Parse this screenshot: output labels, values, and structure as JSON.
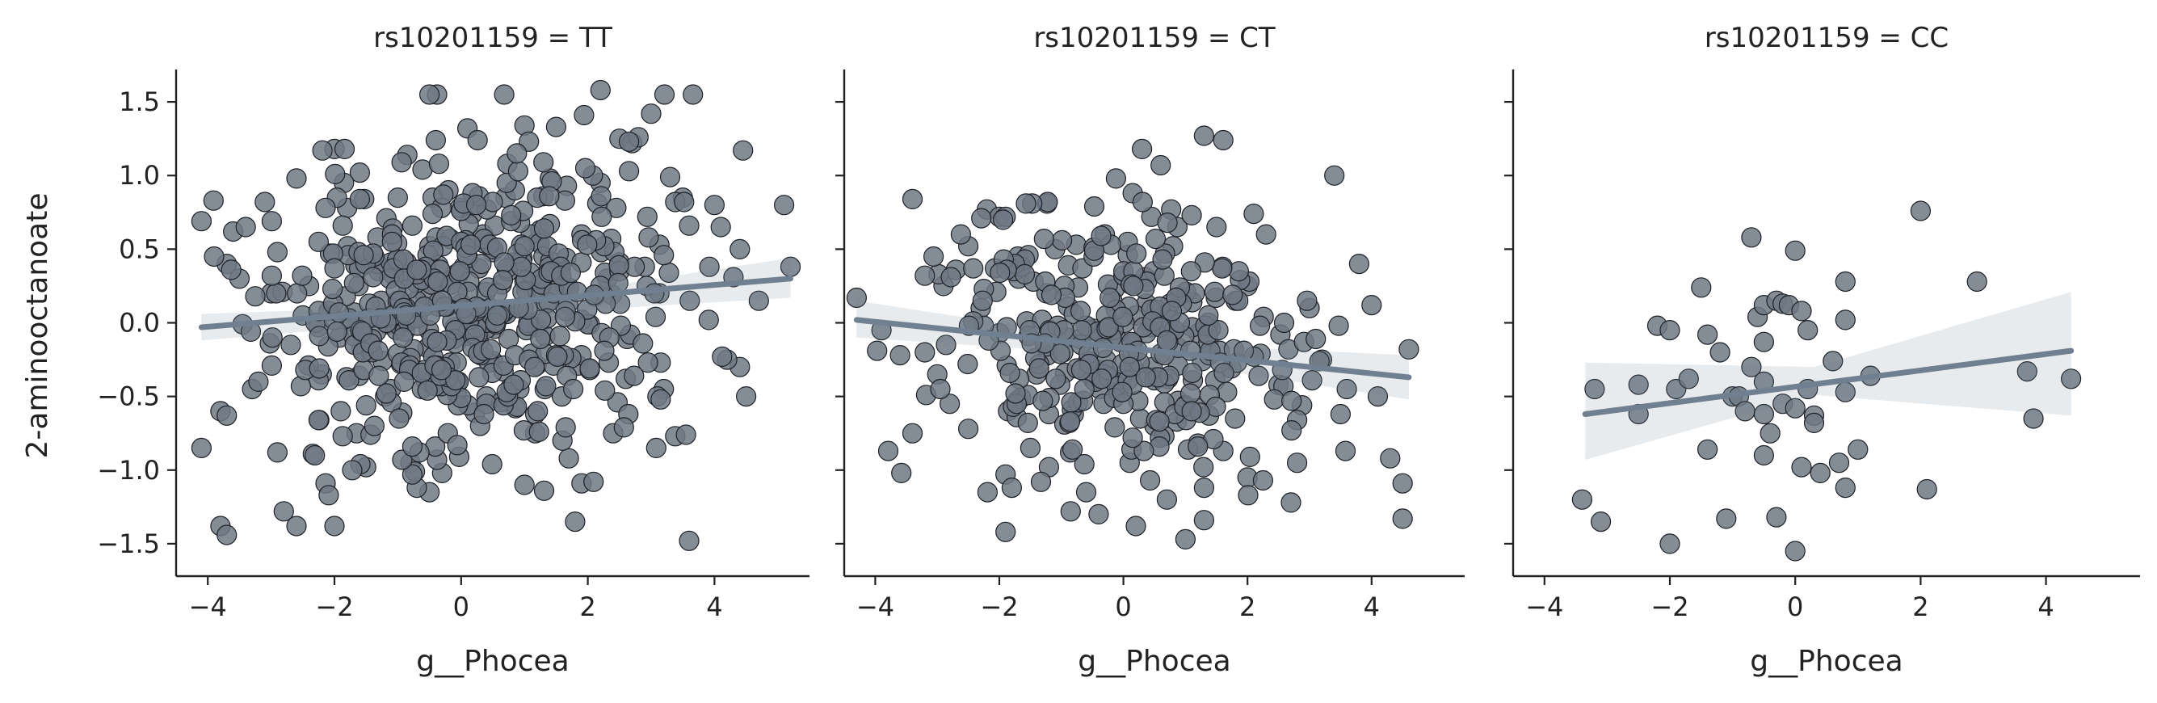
{
  "chart_data": {
    "type": "scatter",
    "ylabel": "2-aminooctanoate",
    "xlim": [
      -4.5,
      5.5
    ],
    "ylim": [
      -1.72,
      1.72
    ],
    "xticks": [
      -4,
      -2,
      0,
      2,
      4
    ],
    "xtick_labels": [
      "−4",
      "−2",
      "0",
      "2",
      "4"
    ],
    "yticks": [
      -1.5,
      -1.0,
      -0.5,
      0.0,
      0.5,
      1.0,
      1.5
    ],
    "ytick_labels": [
      "−1.5",
      "−1.0",
      "−0.5",
      "0.0",
      "0.5",
      "1.0",
      "1.5"
    ],
    "colors": {
      "points": "#6e7884",
      "point_edge": "#1e2228",
      "fit": "#708090"
    },
    "panels": [
      {
        "title": "rs10201159 = TT",
        "xlabel": "g__Phocea",
        "n_points": 520,
        "seed": 11,
        "x_mean": 0.1,
        "x_sd": 1.5,
        "y_sd": 0.5,
        "x_range": [
          -4.1,
          5.2
        ],
        "fit": {
          "x": [
            -4.1,
            5.2
          ],
          "y": [
            -0.03,
            0.3
          ]
        },
        "ci": {
          "x": [
            -4.1,
            0.5,
            5.2
          ],
          "lower": [
            -0.12,
            0.05,
            0.17
          ],
          "upper": [
            0.06,
            0.13,
            0.44
          ]
        },
        "points": [
          [
            -4.1,
            -0.85
          ],
          [
            -3.8,
            -1.38
          ],
          [
            -3.7,
            -1.44
          ],
          [
            -3.8,
            -0.6
          ],
          [
            -3.7,
            -0.63
          ],
          [
            -3.6,
            0.62
          ],
          [
            -3.7,
            0.4
          ],
          [
            -3.4,
            0.65
          ],
          [
            -3.3,
            -0.45
          ],
          [
            -3.1,
            0.82
          ],
          [
            -2.8,
            -1.28
          ],
          [
            -2.6,
            -1.38
          ],
          [
            -2.9,
            -0.88
          ],
          [
            -2.6,
            0.98
          ],
          [
            -2.0,
            1.18
          ],
          [
            -1.6,
            1.02
          ],
          [
            2.2,
            1.58
          ],
          [
            3.0,
            1.42
          ],
          [
            2.5,
            1.25
          ],
          [
            2.7,
            1.22
          ],
          [
            2.8,
            1.26
          ],
          [
            0.1,
            1.32
          ],
          [
            1.0,
            1.34
          ],
          [
            1.5,
            1.33
          ],
          [
            3.6,
            -1.48
          ],
          [
            1.8,
            -1.35
          ],
          [
            1.7,
            -0.92
          ],
          [
            1.0,
            -1.1
          ],
          [
            -0.5,
            -1.15
          ],
          [
            -0.7,
            -1.12
          ],
          [
            -0.3,
            -1.02
          ],
          [
            -1.5,
            -0.98
          ],
          [
            -0.8,
            -0.95
          ],
          [
            3.5,
            0.85
          ],
          [
            4.0,
            0.8
          ],
          [
            4.1,
            0.65
          ],
          [
            4.4,
            0.5
          ],
          [
            4.7,
            0.15
          ],
          [
            5.1,
            0.8
          ],
          [
            5.2,
            0.38
          ],
          [
            4.4,
            -0.3
          ],
          [
            4.2,
            -0.25
          ],
          [
            4.5,
            -0.5
          ],
          [
            3.2,
            -0.45
          ],
          [
            3.1,
            -0.5
          ],
          [
            2.6,
            -0.38
          ],
          [
            2.2,
            0.95
          ],
          [
            2.9,
            0.38
          ],
          [
            1.9,
            0.6
          ],
          [
            1.2,
            0.55
          ],
          [
            0.5,
            0.48
          ],
          [
            -0.5,
            0.52
          ],
          [
            -1.3,
            0.35
          ],
          [
            -2.4,
            0.25
          ],
          [
            -1.9,
            -0.6
          ],
          [
            -1.2,
            -0.5
          ],
          [
            0.4,
            -0.5
          ],
          [
            1.6,
            -0.8
          ],
          [
            2.4,
            -0.75
          ],
          [
            -2.2,
            -0.35
          ],
          [
            -3.2,
            -0.4
          ],
          [
            -3.9,
            0.45
          ],
          [
            -3.0,
            0.2
          ],
          [
            -2.5,
            0.05
          ],
          [
            0.2,
            0.8
          ],
          [
            -0.2,
            0.9
          ],
          [
            0.7,
            0.85
          ],
          [
            1.4,
            0.98
          ],
          [
            -1.0,
            0.85
          ],
          [
            -1.8,
            0.78
          ],
          [
            -2.9,
            0.48
          ],
          [
            -3.5,
            0.3
          ]
        ]
      },
      {
        "title": "rs10201159 = CT",
        "xlabel": "g__Phocea",
        "n_points": 330,
        "seed": 23,
        "x_mean": -0.1,
        "x_sd": 1.35,
        "y_sd": 0.45,
        "x_range": [
          -4.3,
          4.6
        ],
        "fit": {
          "x": [
            -4.3,
            4.6
          ],
          "y": [
            0.02,
            -0.37
          ]
        },
        "ci": {
          "x": [
            -4.3,
            0.0,
            4.6
          ],
          "lower": [
            -0.1,
            -0.22,
            -0.52
          ],
          "upper": [
            0.15,
            -0.13,
            -0.22
          ]
        },
        "points": [
          [
            -4.3,
            0.17
          ],
          [
            -3.9,
            -0.05
          ],
          [
            -3.6,
            -0.22
          ],
          [
            -3.4,
            0.84
          ],
          [
            -3.4,
            -0.75
          ],
          [
            -3.2,
            -0.2
          ],
          [
            -3.0,
            -0.35
          ],
          [
            -2.9,
            0.25
          ],
          [
            -2.7,
            0.36
          ],
          [
            -2.5,
            0.52
          ],
          [
            -2.5,
            -0.72
          ],
          [
            -2.2,
            0.77
          ],
          [
            -2.0,
            0.72
          ],
          [
            -1.9,
            -1.03
          ],
          [
            -1.9,
            -1.42
          ],
          [
            -1.8,
            -1.12
          ],
          [
            0.3,
            1.18
          ],
          [
            0.6,
            1.07
          ],
          [
            1.3,
            1.27
          ],
          [
            3.4,
            1.0
          ],
          [
            2.3,
            0.6
          ],
          [
            2.1,
            0.74
          ],
          [
            1.5,
            0.65
          ],
          [
            3.8,
            0.4
          ],
          [
            4.0,
            0.12
          ],
          [
            4.6,
            -0.18
          ],
          [
            4.5,
            -1.33
          ],
          [
            4.3,
            -0.92
          ],
          [
            3.5,
            -0.62
          ],
          [
            2.8,
            -0.95
          ],
          [
            2.7,
            -1.22
          ],
          [
            2.0,
            -1.05
          ],
          [
            1.3,
            -1.12
          ],
          [
            1.0,
            -1.47
          ],
          [
            0.7,
            -1.2
          ],
          [
            0.2,
            -1.38
          ],
          [
            -0.4,
            -1.3
          ],
          [
            -0.6,
            -1.15
          ],
          [
            -1.2,
            -0.98
          ],
          [
            -1.5,
            -0.85
          ],
          [
            0.1,
            -0.95
          ],
          [
            1.2,
            -0.82
          ],
          [
            1.8,
            -0.65
          ],
          [
            2.5,
            -0.42
          ],
          [
            3.2,
            -0.25
          ],
          [
            3.6,
            -0.45
          ],
          [
            4.1,
            -0.5
          ],
          [
            3.0,
            0.1
          ],
          [
            2.0,
            0.25
          ],
          [
            1.6,
            0.38
          ],
          [
            0.8,
            0.52
          ],
          [
            -0.3,
            0.6
          ],
          [
            -1.1,
            0.5
          ],
          [
            -1.7,
            0.45
          ],
          [
            -2.3,
            0.1
          ],
          [
            -2.8,
            -0.55
          ],
          [
            -0.8,
            -0.62
          ],
          [
            0.5,
            -0.7
          ],
          [
            -1.4,
            -0.35
          ],
          [
            0.9,
            0.18
          ]
        ]
      },
      {
        "title": "rs10201159 = CC",
        "xlabel": "g__Phocea",
        "n_points": 0,
        "seed": 37,
        "x_mean": 0,
        "x_sd": 1,
        "y_sd": 0.5,
        "x_range": [
          -3.35,
          4.4
        ],
        "fit": {
          "x": [
            -3.35,
            4.4
          ],
          "y": [
            -0.62,
            -0.19
          ]
        },
        "ci": {
          "x": [
            -3.35,
            0.3,
            4.4
          ],
          "lower": [
            -0.93,
            -0.49,
            -0.63
          ],
          "upper": [
            -0.27,
            -0.3,
            0.21
          ]
        },
        "points": [
          [
            -3.4,
            -1.2
          ],
          [
            -3.2,
            -0.45
          ],
          [
            -3.1,
            -1.35
          ],
          [
            -2.5,
            -0.42
          ],
          [
            -2.5,
            -0.62
          ],
          [
            -2.2,
            -0.02
          ],
          [
            -2.0,
            -0.05
          ],
          [
            -2.0,
            -1.5
          ],
          [
            -1.9,
            -0.45
          ],
          [
            -1.7,
            -0.38
          ],
          [
            -1.5,
            0.24
          ],
          [
            -1.4,
            -0.08
          ],
          [
            -1.4,
            -0.86
          ],
          [
            -1.2,
            -0.2
          ],
          [
            -1.1,
            -1.33
          ],
          [
            -1.0,
            -0.5
          ],
          [
            -0.9,
            -0.5
          ],
          [
            -0.8,
            -0.6
          ],
          [
            -0.7,
            0.58
          ],
          [
            -0.7,
            -0.3
          ],
          [
            -0.6,
            0.04
          ],
          [
            -0.5,
            0.12
          ],
          [
            -0.5,
            -0.13
          ],
          [
            -0.5,
            -0.4
          ],
          [
            -0.5,
            -0.62
          ],
          [
            -0.5,
            -0.9
          ],
          [
            -0.4,
            -0.75
          ],
          [
            -0.3,
            0.15
          ],
          [
            -0.3,
            -1.32
          ],
          [
            -0.2,
            0.13
          ],
          [
            -0.2,
            -0.55
          ],
          [
            -0.1,
            0.12
          ],
          [
            0.1,
            0.08
          ],
          [
            0.0,
            0.49
          ],
          [
            0.0,
            -0.58
          ],
          [
            0.0,
            -1.55
          ],
          [
            0.1,
            -0.98
          ],
          [
            0.2,
            -0.05
          ],
          [
            0.2,
            -0.45
          ],
          [
            0.3,
            -0.63
          ],
          [
            0.3,
            -0.68
          ],
          [
            0.4,
            -1.02
          ],
          [
            0.6,
            -0.26
          ],
          [
            0.7,
            -0.95
          ],
          [
            0.8,
            0.28
          ],
          [
            0.8,
            -0.47
          ],
          [
            0.8,
            -1.12
          ],
          [
            0.8,
            0.02
          ],
          [
            1.2,
            -0.36
          ],
          [
            2.0,
            0.76
          ],
          [
            2.1,
            -1.13
          ],
          [
            2.9,
            0.28
          ],
          [
            3.7,
            -0.33
          ],
          [
            3.8,
            -0.65
          ],
          [
            4.4,
            -0.38
          ],
          [
            1.0,
            -0.86
          ]
        ]
      }
    ]
  }
}
